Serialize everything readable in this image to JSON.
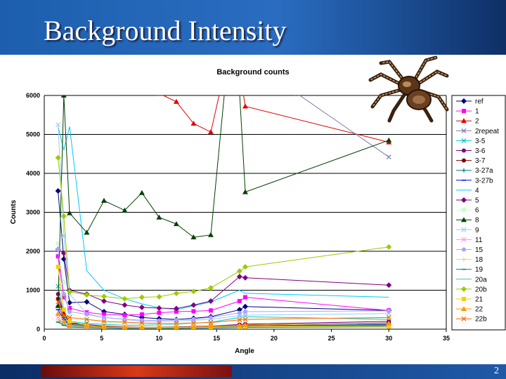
{
  "slide": {
    "title": "Background Intensity",
    "page_number": "2"
  },
  "chart_data": {
    "type": "line",
    "title": "Background counts",
    "xlabel": "Angle",
    "ylabel": "Counts",
    "xlim": [
      0,
      35
    ],
    "ylim": [
      0,
      6000
    ],
    "xticks": [
      0,
      5,
      10,
      15,
      20,
      25,
      30,
      35
    ],
    "yticks": [
      0,
      1000,
      2000,
      3000,
      4000,
      5000,
      6000
    ],
    "grid": "horizontal",
    "legend_position": "right",
    "series": [
      {
        "name": "ref",
        "color": "#000080",
        "marker": "diamond",
        "x": [
          1.2,
          1.7,
          2.2,
          3.7,
          5.2,
          7,
          8.5,
          10,
          11.5,
          13,
          14.5,
          17,
          17.5,
          30
        ],
        "y": [
          3550,
          1800,
          680,
          700,
          450,
          380,
          300,
          270,
          250,
          280,
          320,
          500,
          580,
          480
        ]
      },
      {
        "name": "1",
        "color": "#ff00ff",
        "marker": "square",
        "x": [
          1.2,
          1.7,
          2.2,
          3.7,
          5.2,
          7,
          8.5,
          10,
          11.5,
          13,
          14.5,
          17,
          17.5,
          30
        ],
        "y": [
          1870,
          820,
          540,
          430,
          380,
          360,
          380,
          420,
          450,
          460,
          480,
          720,
          820,
          480
        ]
      },
      {
        "name": "2",
        "color": "#e00000",
        "marker": "triangle",
        "x": [
          10,
          11.5,
          13,
          14.5,
          15.3,
          17.3,
          17.5,
          30
        ],
        "y": [
          6050,
          5840,
          5280,
          5060,
          6100,
          6100,
          5720,
          4800
        ]
      },
      {
        "name": "2repeat",
        "color": "#7a7ab0",
        "marker": "x",
        "x": [
          22,
          30
        ],
        "y": [
          6050,
          4420
        ]
      },
      {
        "name": "3-5",
        "color": "#00c8c8",
        "marker": "x",
        "x": [
          1.2,
          1.7,
          2.2,
          3.7,
          5.2,
          7,
          8.5,
          10,
          11.5,
          13,
          14.5,
          17,
          17.5,
          30
        ],
        "y": [
          1100,
          420,
          200,
          150,
          120,
          100,
          100,
          110,
          120,
          150,
          180,
          300,
          320,
          250
        ]
      },
      {
        "name": "3-6",
        "color": "#800080",
        "marker": "circle",
        "x": [
          1.2,
          1.7,
          2.2,
          3.7,
          5.2,
          7,
          8.5,
          10,
          11.5,
          13,
          14.5,
          17,
          17.5,
          30
        ],
        "y": [
          900,
          400,
          160,
          120,
          80,
          60,
          50,
          50,
          60,
          70,
          80,
          120,
          130,
          200
        ]
      },
      {
        "name": "3-7",
        "color": "#800000",
        "marker": "circle",
        "x": [
          1.2,
          1.7,
          2.2,
          3.7,
          5.2,
          7,
          8.5,
          10,
          11.5,
          13,
          14.5,
          17,
          17.5,
          30
        ],
        "y": [
          780,
          380,
          150,
          110,
          70,
          50,
          40,
          45,
          50,
          60,
          70,
          100,
          110,
          160
        ]
      },
      {
        "name": "3-27a",
        "color": "#008080",
        "marker": "plus",
        "x": [
          1.2,
          1.7,
          2.2,
          3.7,
          5.2,
          7,
          8.5,
          10,
          11.5,
          13,
          14.5,
          17,
          17.5,
          30
        ],
        "y": [
          600,
          300,
          120,
          90,
          60,
          40,
          30,
          30,
          40,
          50,
          60,
          80,
          90,
          120
        ]
      },
      {
        "name": "3-27b",
        "color": "#0000ff",
        "marker": "dash",
        "x": [
          1.2,
          1.7,
          2.2,
          3.7,
          5.2,
          7,
          8.5,
          10,
          11.5,
          13,
          14.5,
          17,
          17.5,
          30
        ],
        "y": [
          500,
          250,
          100,
          80,
          50,
          35,
          30,
          30,
          35,
          40,
          50,
          70,
          80,
          110
        ]
      },
      {
        "name": "4",
        "color": "#00c8ff",
        "marker": "none",
        "x": [
          1.2,
          1.7,
          2.2,
          3.7,
          5.2,
          7,
          8.5,
          10,
          11.5,
          13,
          14.5,
          17,
          17.5,
          30
        ],
        "y": [
          5200,
          4600,
          5200,
          1500,
          1000,
          780,
          650,
          550,
          500,
          600,
          700,
          1000,
          920,
          820
        ]
      },
      {
        "name": "5",
        "color": "#800080",
        "marker": "diamond",
        "x": [
          1.2,
          1.7,
          2.2,
          3.7,
          5.2,
          7,
          8.5,
          10,
          11.5,
          13,
          14.5,
          17,
          17.5,
          30
        ],
        "y": [
          2050,
          1950,
          1000,
          900,
          720,
          620,
          560,
          540,
          530,
          620,
          720,
          1350,
          1320,
          1130
        ]
      },
      {
        "name": "6",
        "color": "#ccffcc",
        "marker": "square",
        "x": [
          1.2,
          1.7,
          2.2,
          3.7,
          5.2,
          7,
          8.5,
          10,
          11.5,
          13,
          14.5,
          17,
          17.5,
          30
        ],
        "y": [
          2200,
          1200,
          400,
          250,
          180,
          150,
          130,
          120,
          130,
          150,
          170,
          250,
          260,
          300
        ]
      },
      {
        "name": "8",
        "color": "#004000",
        "marker": "triangle",
        "x": [
          1.2,
          1.7,
          2.2,
          3.7,
          5.2,
          7,
          8.5,
          10,
          11.5,
          13,
          14.5,
          15.7,
          17,
          17.5,
          30
        ],
        "y": [
          600,
          6000,
          2980,
          2480,
          3300,
          3050,
          3500,
          2870,
          2700,
          2360,
          2420,
          6100,
          6100,
          3520,
          4850
        ]
      },
      {
        "name": "9",
        "color": "#99ccff",
        "marker": "x",
        "x": [
          1.2,
          1.7,
          2.2,
          3.7,
          5.2,
          7,
          8.5,
          10,
          11.5,
          13,
          14.5,
          17,
          17.5,
          30
        ],
        "y": [
          5250,
          2400,
          900,
          400,
          300,
          250,
          200,
          200,
          210,
          230,
          250,
          350,
          360,
          400
        ]
      },
      {
        "name": "11",
        "color": "#ff99cc",
        "marker": "x",
        "x": [
          1.2,
          1.7,
          2.2,
          3.7,
          5.2,
          7,
          8.5,
          10,
          11.5,
          13,
          14.5,
          17,
          17.5,
          30
        ],
        "y": [
          300,
          150,
          80,
          60,
          40,
          30,
          25,
          25,
          30,
          35,
          40,
          60,
          70,
          90
        ]
      },
      {
        "name": "15",
        "color": "#b0a0ff",
        "marker": "circle",
        "x": [
          1.2,
          1.7,
          2.2,
          3.7,
          5.2,
          7,
          8.5,
          10,
          11.5,
          13,
          14.5,
          17,
          17.5,
          30
        ],
        "y": [
          2050,
          900,
          450,
          380,
          300,
          260,
          230,
          220,
          240,
          260,
          300,
          420,
          450,
          470
        ]
      },
      {
        "name": "18",
        "color": "#ffcc66",
        "marker": "plus",
        "x": [
          1.2,
          1.7,
          2.2,
          3.7,
          5.2,
          7,
          8.5,
          10,
          11.5,
          13,
          14.5,
          17,
          17.5,
          30
        ],
        "y": [
          200,
          120,
          60,
          40,
          30,
          25,
          20,
          20,
          25,
          30,
          35,
          50,
          55,
          70
        ]
      },
      {
        "name": "19",
        "color": "#008080",
        "marker": "dash",
        "x": [
          1.2,
          1.7,
          2.2,
          3.7,
          5.2,
          7,
          8.5,
          10,
          11.5,
          13,
          14.5,
          17,
          17.5,
          30
        ],
        "y": [
          180,
          100,
          50,
          40,
          30,
          20,
          20,
          20,
          20,
          25,
          30,
          40,
          45,
          60
        ]
      },
      {
        "name": "20a",
        "color": "#40c0c0",
        "marker": "none",
        "x": [
          1.2,
          1.7,
          2.2,
          3.7,
          5.2,
          7,
          8.5,
          10,
          11.5,
          13,
          14.5,
          17,
          17.5,
          30
        ],
        "y": [
          250,
          150,
          80,
          60,
          40,
          30,
          30,
          30,
          35,
          40,
          50,
          70,
          75,
          90
        ]
      },
      {
        "name": "20b",
        "color": "#99cc00",
        "marker": "diamond",
        "x": [
          1.2,
          1.7,
          2.2,
          3.7,
          5.2,
          7,
          8.5,
          10,
          11.5,
          13,
          14.5,
          17,
          17.5,
          30
        ],
        "y": [
          4400,
          2900,
          960,
          880,
          840,
          780,
          820,
          830,
          920,
          970,
          1060,
          1490,
          1600,
          2110
        ]
      },
      {
        "name": "21",
        "color": "#ffcc00",
        "marker": "square",
        "x": [
          1.2,
          1.7,
          2.2,
          3.7,
          5.2,
          7,
          8.5,
          10,
          11.5,
          13,
          14.5,
          17,
          17.5,
          30
        ],
        "y": [
          1600,
          500,
          200,
          100,
          60,
          40,
          30,
          30,
          35,
          40,
          50,
          60,
          65,
          70
        ]
      },
      {
        "name": "22",
        "color": "#ff9900",
        "marker": "triangle",
        "x": [
          1.2,
          1.7,
          2.2,
          3.7,
          5.2,
          7,
          8.5,
          10,
          11.5,
          13,
          14.5,
          17,
          17.5,
          30
        ],
        "y": [
          400,
          200,
          100,
          80,
          60,
          50,
          45,
          45,
          50,
          60,
          70,
          100,
          110,
          150
        ]
      },
      {
        "name": "22b",
        "color": "#ff6600",
        "marker": "x",
        "x": [
          1.2,
          1.7,
          2.2,
          3.7,
          5.2,
          7,
          8.5,
          10,
          11.5,
          13,
          14.5,
          17,
          17.5,
          30
        ],
        "y": [
          700,
          350,
          300,
          250,
          200,
          180,
          160,
          150,
          150,
          160,
          170,
          240,
          250,
          300
        ]
      }
    ]
  }
}
